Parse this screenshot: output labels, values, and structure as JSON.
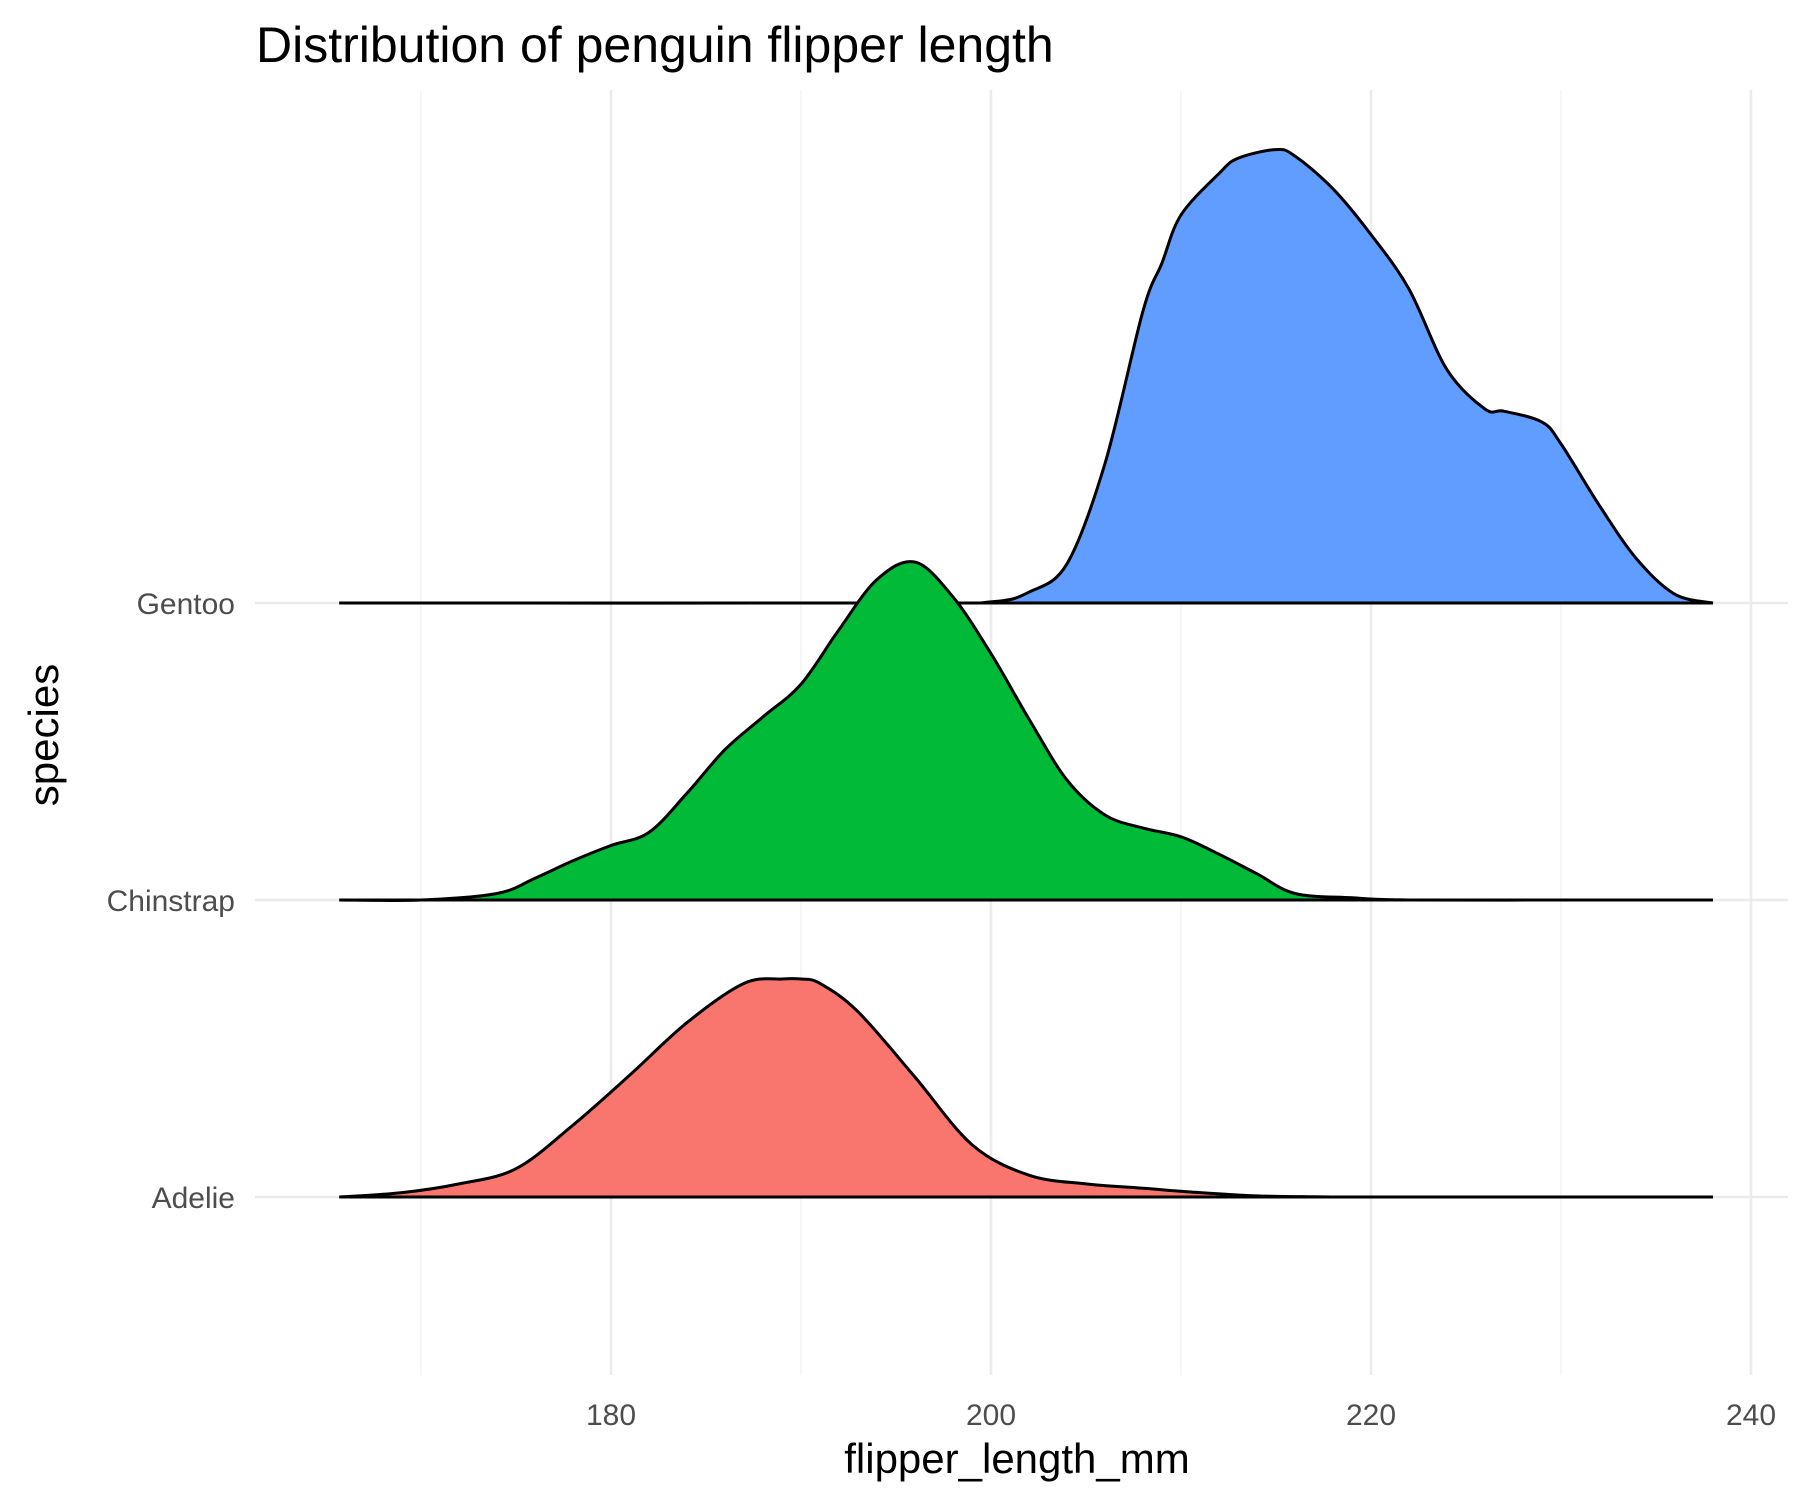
{
  "chart_data": {
    "type": "ridgeline",
    "title": "Distribution of penguin flipper length",
    "xlabel": "flipper_length_mm",
    "ylabel": "species",
    "xlim": [
      162,
      241
    ],
    "x_ticks": [
      180,
      200,
      220,
      240
    ],
    "grid": true,
    "legend": "none",
    "categories": [
      "Adelie",
      "Chinstrap",
      "Gentoo"
    ],
    "series": [
      {
        "name": "Adelie",
        "color": "#f8766d",
        "density": {
          "x": [
            165.7,
            169,
            172,
            175,
            178,
            181,
            184,
            187,
            189,
            190,
            191,
            193,
            196,
            199,
            202,
            205,
            208,
            211,
            214,
            217,
            220,
            225,
            230,
            238
          ],
          "y": [
            0.0,
            0.02,
            0.06,
            0.13,
            0.33,
            0.56,
            0.8,
            0.98,
            1.0,
            1.0,
            0.98,
            0.85,
            0.55,
            0.24,
            0.1,
            0.06,
            0.04,
            0.02,
            0.005,
            0.001,
            0.0,
            0.0,
            0.0,
            0.0
          ]
        }
      },
      {
        "name": "Chinstrap",
        "color": "#00ba38",
        "density": {
          "x": [
            165.7,
            170,
            174,
            176,
            178,
            180,
            182,
            184,
            186,
            188,
            190,
            192,
            194,
            196,
            198,
            200,
            202,
            204,
            206,
            208,
            210,
            212,
            214,
            216,
            219,
            222,
            230,
            238
          ],
          "y": [
            0.0,
            0.0,
            0.03,
            0.1,
            0.18,
            0.25,
            0.31,
            0.49,
            0.69,
            0.84,
            0.99,
            1.24,
            1.47,
            1.55,
            1.39,
            1.13,
            0.83,
            0.55,
            0.39,
            0.33,
            0.29,
            0.21,
            0.12,
            0.03,
            0.01,
            0.0,
            0.0,
            0.0
          ]
        }
      },
      {
        "name": "Gentoo",
        "color": "#619cff",
        "density": {
          "x": [
            165.7,
            195,
            200,
            202,
            204,
            206,
            208,
            209,
            210,
            212,
            213,
            215,
            216,
            218,
            220,
            222,
            224,
            226,
            227,
            229,
            230,
            232,
            234,
            236,
            238
          ],
          "y": [
            0.0,
            0.0,
            0.005,
            0.05,
            0.18,
            0.64,
            1.34,
            1.56,
            1.78,
            1.97,
            2.04,
            2.08,
            2.05,
            1.9,
            1.69,
            1.44,
            1.07,
            0.89,
            0.88,
            0.83,
            0.73,
            0.45,
            0.2,
            0.04,
            0.0
          ]
        }
      }
    ]
  }
}
